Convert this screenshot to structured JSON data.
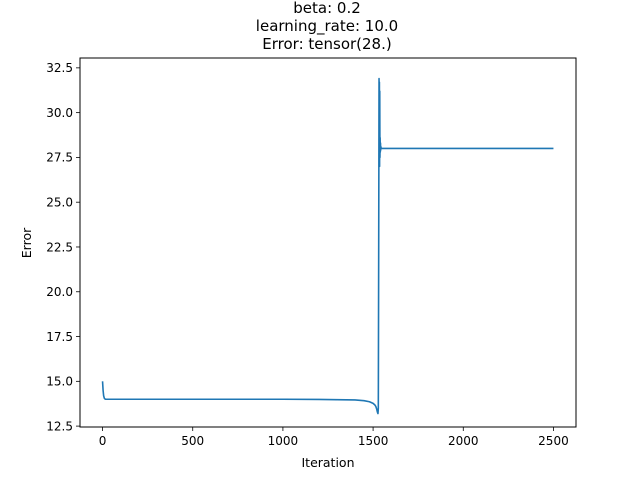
{
  "chart_data": {
    "type": "line",
    "title_lines": [
      "beta: 0.2",
      "learning_rate: 10.0",
      "Error: tensor(28.)"
    ],
    "xlabel": "Iteration",
    "ylabel": "Error",
    "xlim": [
      -125,
      2625
    ],
    "ylim": [
      12.45,
      33.05
    ],
    "xticks": [
      0,
      500,
      1000,
      1500,
      2000,
      2500
    ],
    "yticks": [
      12.5,
      15.0,
      17.5,
      20.0,
      22.5,
      25.0,
      27.5,
      30.0,
      32.5
    ],
    "xtick_labels": [
      "0",
      "500",
      "1000",
      "1500",
      "2000",
      "2500"
    ],
    "ytick_labels": [
      "12.5",
      "15.0",
      "17.5",
      "20.0",
      "22.5",
      "25.0",
      "27.5",
      "30.0",
      "32.5"
    ],
    "grid": false,
    "legend": "none",
    "series": [
      {
        "color": "#1f77b4",
        "x": [
          0,
          3,
          6,
          10,
          15,
          25,
          50,
          200,
          500,
          1000,
          1200,
          1400,
          1450,
          1480,
          1500,
          1510,
          1515,
          1520,
          1524,
          1527,
          1529,
          1531,
          1532,
          1533,
          1534,
          1535,
          1536,
          1537,
          1538,
          1539,
          1540,
          1541,
          1542,
          1543,
          1545,
          1548,
          1552,
          1560,
          1600,
          2000,
          2500
        ],
        "y": [
          15.0,
          14.5,
          14.2,
          14.05,
          14.0,
          14.0,
          14.0,
          14.0,
          14.0,
          14.0,
          13.99,
          13.96,
          13.92,
          13.86,
          13.77,
          13.68,
          13.6,
          13.45,
          13.28,
          13.2,
          13.5,
          22.0,
          26.9,
          31.9,
          28.3,
          31.7,
          27.0,
          31.2,
          27.5,
          28.6,
          27.8,
          28.3,
          27.9,
          28.1,
          28.0,
          28.0,
          28.0,
          28.0,
          28.0,
          28.0,
          28.0
        ]
      }
    ]
  }
}
